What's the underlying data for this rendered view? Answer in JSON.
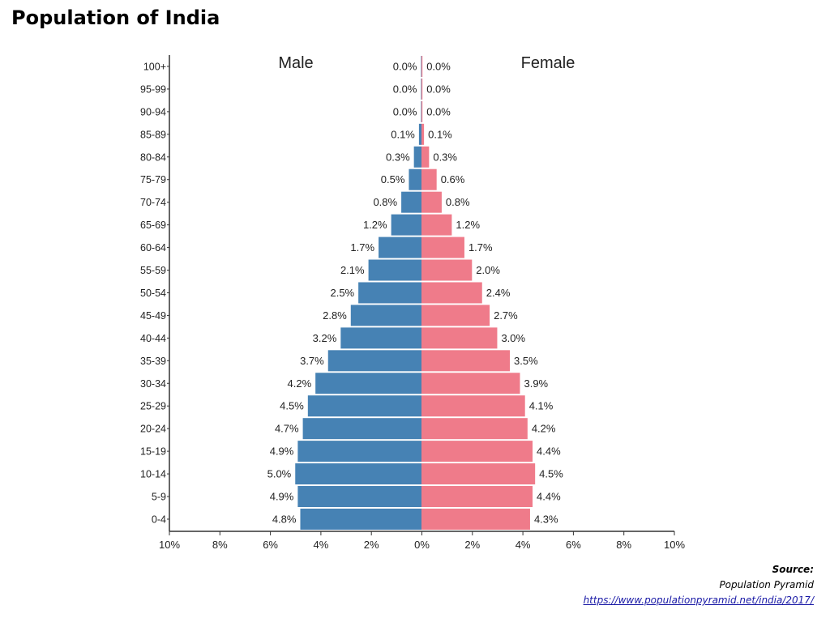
{
  "title": "Population of India",
  "source": {
    "label": "Source:",
    "name": "Population Pyramid",
    "url": "https://www.populationpyramid.net/india/2017/"
  },
  "colors": {
    "male": "#4682b4",
    "female": "#ef7b8a",
    "axis": "#333333"
  },
  "chart_data": {
    "type": "bar",
    "orientation": "horizontal",
    "categories": [
      "100+",
      "95-99",
      "90-94",
      "85-89",
      "80-84",
      "75-79",
      "70-74",
      "65-69",
      "60-64",
      "55-59",
      "50-54",
      "45-49",
      "40-44",
      "35-39",
      "30-34",
      "25-29",
      "20-24",
      "15-19",
      "10-14",
      "5-9",
      "0-4"
    ],
    "series": [
      {
        "name": "Male",
        "values": [
          0.0,
          0.0,
          0.0,
          0.1,
          0.3,
          0.5,
          0.8,
          1.2,
          1.7,
          2.1,
          2.5,
          2.8,
          3.2,
          3.7,
          4.2,
          4.5,
          4.7,
          4.9,
          5.0,
          4.9,
          4.8
        ]
      },
      {
        "name": "Female",
        "values": [
          0.0,
          0.0,
          0.0,
          0.1,
          0.3,
          0.6,
          0.8,
          1.2,
          1.7,
          2.0,
          2.4,
          2.7,
          3.0,
          3.5,
          3.9,
          4.1,
          4.2,
          4.4,
          4.5,
          4.4,
          4.3
        ]
      }
    ],
    "value_labels": {
      "Male": [
        "0.0%",
        "0.0%",
        "0.0%",
        "0.1%",
        "0.3%",
        "0.5%",
        "0.8%",
        "1.2%",
        "1.7%",
        "2.1%",
        "2.5%",
        "2.8%",
        "3.2%",
        "3.7%",
        "4.2%",
        "4.5%",
        "4.7%",
        "4.9%",
        "5.0%",
        "4.9%",
        "4.8%"
      ],
      "Female": [
        "0.0%",
        "0.0%",
        "0.0%",
        "0.1%",
        "0.3%",
        "0.6%",
        "0.8%",
        "1.2%",
        "1.7%",
        "2.0%",
        "2.4%",
        "2.7%",
        "3.0%",
        "3.5%",
        "3.9%",
        "4.1%",
        "4.2%",
        "4.4%",
        "4.5%",
        "4.4%",
        "4.3%"
      ]
    },
    "x_ticks": [
      -10,
      -8,
      -6,
      -4,
      -2,
      0,
      2,
      4,
      6,
      8,
      10
    ],
    "x_tick_labels": [
      "10%",
      "8%",
      "6%",
      "4%",
      "2%",
      "0%",
      "2%",
      "4%",
      "6%",
      "8%",
      "10%"
    ],
    "xlim": [
      -10,
      10
    ],
    "grid": false,
    "legend": "series names printed at top of each side"
  }
}
